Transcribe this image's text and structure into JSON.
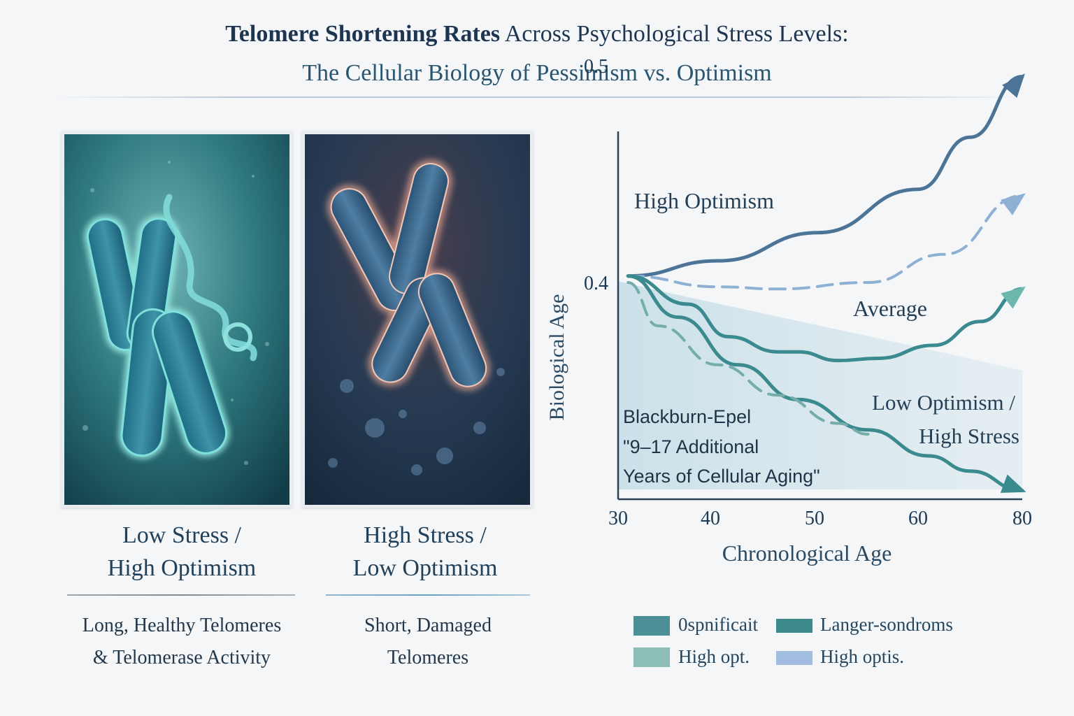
{
  "title": {
    "line1_bold": "Telomere Shortening Rates",
    "line1_rest": " Across Psychological Stress Levels:",
    "line2": "The Cellular Biology of Pessimism vs. Optimism"
  },
  "panels": [
    {
      "caption_line1": "Low Stress /",
      "caption_line2": "High Optimism",
      "sub_line1": "Long, Healthy Telomeres",
      "sub_line2": "& Telomerase Activity"
    },
    {
      "caption_line1": "High Stress /",
      "caption_line2": "Low Optimism",
      "sub_line1": "Short, Damaged",
      "sub_line2": "Telomeres"
    }
  ],
  "colors": {
    "high": "#4c7497",
    "high_dashed": "#8db0d3",
    "average": "#3b8a8f",
    "average_arrow": "#6cb8ad",
    "low": "#3a8a8e",
    "low_dashed": "#74ada9"
  },
  "chart_data": {
    "type": "line",
    "xlabel": "Chronological Age",
    "ylabel": "Biological Age",
    "xlim": [
      30,
      80
    ],
    "ylim": [
      0.3,
      0.5
    ],
    "x_ticks": [
      30,
      40,
      50,
      60,
      80
    ],
    "y_ticks": [
      0.4,
      0.5
    ],
    "series": [
      {
        "name": "High Optimism",
        "style": "solid",
        "color": "#4c7497",
        "points": [
          [
            31,
            0.403
          ],
          [
            40,
            0.41
          ],
          [
            50,
            0.423
          ],
          [
            60,
            0.443
          ],
          [
            70,
            0.467
          ],
          [
            80,
            0.495
          ]
        ]
      },
      {
        "style": "dashed",
        "color": "#8db0d3",
        "points": [
          [
            31,
            0.403
          ],
          [
            40,
            0.398
          ],
          [
            46,
            0.397
          ],
          [
            55,
            0.4
          ],
          [
            65,
            0.413
          ],
          [
            80,
            0.44
          ]
        ]
      },
      {
        "name": "Average",
        "style": "solid",
        "color": "#3b8a8f",
        "points": [
          [
            31,
            0.403
          ],
          [
            37,
            0.39
          ],
          [
            41,
            0.375
          ],
          [
            46,
            0.368
          ],
          [
            48,
            0.368
          ],
          [
            52,
            0.364
          ],
          [
            56,
            0.365
          ],
          [
            63,
            0.371
          ],
          [
            72,
            0.382
          ],
          [
            80,
            0.397
          ]
        ]
      },
      {
        "name": "Low Optimism / High Stress",
        "style": "solid",
        "color": "#3a8a8e",
        "points": [
          [
            31,
            0.403
          ],
          [
            36,
            0.384
          ],
          [
            42,
            0.362
          ],
          [
            48,
            0.346
          ],
          [
            55,
            0.332
          ],
          [
            62,
            0.32
          ],
          [
            70,
            0.313
          ],
          [
            80,
            0.304
          ]
        ]
      },
      {
        "style": "dashed",
        "color": "#74ada9",
        "points": [
          [
            31,
            0.4
          ],
          [
            34,
            0.38
          ],
          [
            40,
            0.362
          ],
          [
            46,
            0.348
          ],
          [
            52,
            0.335
          ],
          [
            55,
            0.33
          ]
        ]
      }
    ],
    "annotations": [
      {
        "line1": "Blackburn-Epel",
        "line2": "\"9–17 Additional",
        "line3": "Years of Cellular Aging\""
      }
    ],
    "legend": {
      "placement": "bottom",
      "entries": [
        {
          "label": "0spnificait",
          "color": "#4d8f97"
        },
        {
          "label": "Langer-sondroms",
          "color": "#3e8a8a"
        },
        {
          "label": "High opt.",
          "color": "#8ebfb6"
        },
        {
          "label": "High optis.",
          "color": "#a2bde0"
        }
      ]
    }
  }
}
